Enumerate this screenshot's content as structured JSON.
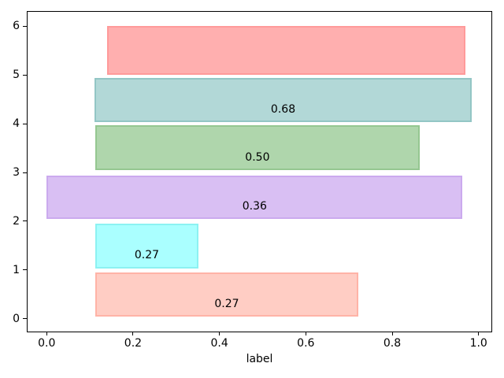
{
  "chart_data": {
    "type": "bar",
    "orientation": "horizontal",
    "title": "",
    "xlabel": "label",
    "ylabel": "",
    "grid": false,
    "legend": null,
    "xlim": [
      -0.0442,
      1.0297
    ],
    "ylim": [
      -0.262,
      6.295
    ],
    "x_ticks": [
      {
        "value": 0.0,
        "label": "0.0"
      },
      {
        "value": 0.2,
        "label": "0.2"
      },
      {
        "value": 0.4,
        "label": "0.4"
      },
      {
        "value": 0.6,
        "label": "0.6"
      },
      {
        "value": 0.8,
        "label": "0.8"
      },
      {
        "value": 1.0,
        "label": "1.0"
      }
    ],
    "y_ticks": [
      {
        "value": 0,
        "label": "0"
      },
      {
        "value": 1,
        "label": "1"
      },
      {
        "value": 2,
        "label": "2"
      },
      {
        "value": 3,
        "label": "3"
      },
      {
        "value": 4,
        "label": "4"
      },
      {
        "value": 5,
        "label": "5"
      },
      {
        "value": 6,
        "label": "6"
      }
    ],
    "bars": [
      {
        "row": 0,
        "left": 0.112,
        "width": 0.61,
        "y_bottom": 0.04,
        "y_top": 0.95,
        "label": "0.27",
        "label_y": 0.3,
        "fill": "#ffcdc4",
        "edge": "#ffb3a7"
      },
      {
        "row": 1,
        "left": 0.112,
        "width": 0.24,
        "y_bottom": 1.03,
        "y_top": 1.95,
        "label": "0.27",
        "label_y": 1.3,
        "fill": "#aaffff",
        "edge": "#8cf2f2"
      },
      {
        "row": 2,
        "left": 0.0,
        "width": 0.963,
        "y_bottom": 2.04,
        "y_top": 2.94,
        "label": "0.36",
        "label_y": 2.3,
        "fill": "#d9bff3",
        "edge": "#cbaaee"
      },
      {
        "row": 3,
        "left": 0.113,
        "width": 0.75,
        "y_bottom": 3.05,
        "y_top": 3.97,
        "label": "0.50",
        "label_y": 3.3,
        "fill": "#afd6ac",
        "edge": "#95c791"
      },
      {
        "row": 4,
        "left": 0.111,
        "width": 0.873,
        "y_bottom": 4.04,
        "y_top": 4.94,
        "label": "0.68",
        "label_y": 4.3,
        "fill": "#b2d8d7",
        "edge": "#93c6c5"
      },
      {
        "row": 5,
        "left": 0.14,
        "width": 0.829,
        "y_bottom": 5.0,
        "y_top": 6.0,
        "label": "",
        "label_y": 5.3,
        "fill": "#ffafaf",
        "edge": "#ff9a9a"
      }
    ]
  }
}
